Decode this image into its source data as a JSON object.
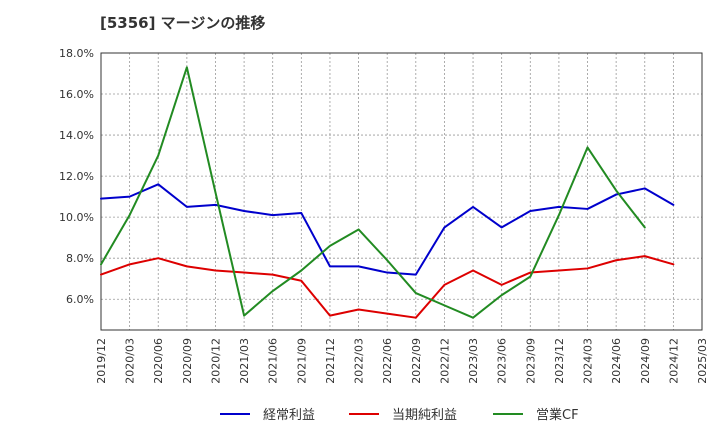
{
  "chart_data": {
    "type": "line",
    "title": "[5356]  マージンの推移",
    "x": [
      "2019/12",
      "2020/03",
      "2020/06",
      "2020/09",
      "2020/12",
      "2021/03",
      "2021/06",
      "2021/09",
      "2021/12",
      "2022/03",
      "2022/06",
      "2022/09",
      "2022/12",
      "2023/03",
      "2023/06",
      "2023/09",
      "2023/12",
      "2024/03",
      "2024/06",
      "2024/09",
      "2024/12",
      "2025/03"
    ],
    "ylim": [
      4.5,
      18.0
    ],
    "yticks": [
      6.0,
      8.0,
      10.0,
      12.0,
      14.0,
      16.0,
      18.0
    ],
    "ytick_labels": [
      "6.0%",
      "8.0%",
      "10.0%",
      "12.0%",
      "14.0%",
      "16.0%",
      "18.0%"
    ],
    "grid": true,
    "legend_position": "bottom",
    "series": [
      {
        "name": "経常利益",
        "color": "#0000cc",
        "values": [
          10.9,
          11.0,
          11.6,
          10.5,
          10.6,
          10.3,
          10.1,
          10.2,
          7.6,
          7.6,
          7.3,
          7.2,
          9.5,
          10.5,
          9.5,
          10.3,
          10.5,
          10.4,
          11.1,
          11.4,
          10.6,
          null
        ]
      },
      {
        "name": "当期純利益",
        "color": "#dd0000",
        "values": [
          7.2,
          7.7,
          8.0,
          7.6,
          7.4,
          7.3,
          7.2,
          6.9,
          5.2,
          5.5,
          5.3,
          5.1,
          6.7,
          7.4,
          6.7,
          7.3,
          7.4,
          7.5,
          7.9,
          8.1,
          7.7,
          null
        ]
      },
      {
        "name": "営業CF",
        "color": "#228b22",
        "values": [
          7.7,
          10.1,
          13.0,
          17.3,
          11.2,
          5.2,
          6.4,
          7.4,
          8.6,
          9.4,
          7.9,
          6.3,
          5.7,
          5.1,
          6.2,
          7.1,
          10.1,
          13.4,
          11.3,
          9.5,
          null,
          null
        ]
      }
    ]
  }
}
